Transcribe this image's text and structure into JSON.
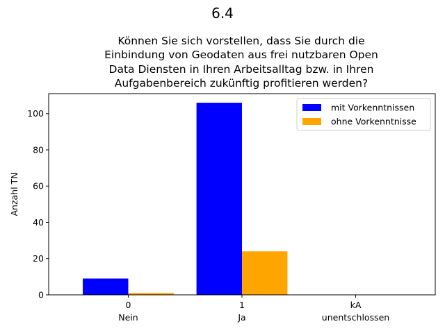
{
  "chart_data": {
    "type": "bar",
    "suptitle": "6.4",
    "title_lines": [
      "Können Sie sich vorstellen, dass Sie durch die",
      "Einbindung von Geodaten aus frei nutzbaren Open",
      "Data Diensten in Ihren Arbeitsalltag bzw. in Ihren",
      "Aufgabenbereich zukünftig profitieren werden?"
    ],
    "ylabel": "Anzahl TN",
    "xlabel": "",
    "categories": [
      {
        "code": "0",
        "label": "Nein"
      },
      {
        "code": "1",
        "label": "Ja"
      },
      {
        "code": "kA",
        "label": "unentschlossen"
      }
    ],
    "series": [
      {
        "name": "mit Vorkenntnissen",
        "color": "#0000ff",
        "values": [
          9,
          106,
          0
        ]
      },
      {
        "name": "ohne Vorkenntnisse",
        "color": "#ffa500",
        "values": [
          1,
          24,
          0
        ]
      }
    ],
    "ylim": [
      0,
      111
    ],
    "yticks": [
      0,
      20,
      40,
      60,
      80,
      100
    ],
    "grid": false,
    "legend_position": "top-right"
  }
}
